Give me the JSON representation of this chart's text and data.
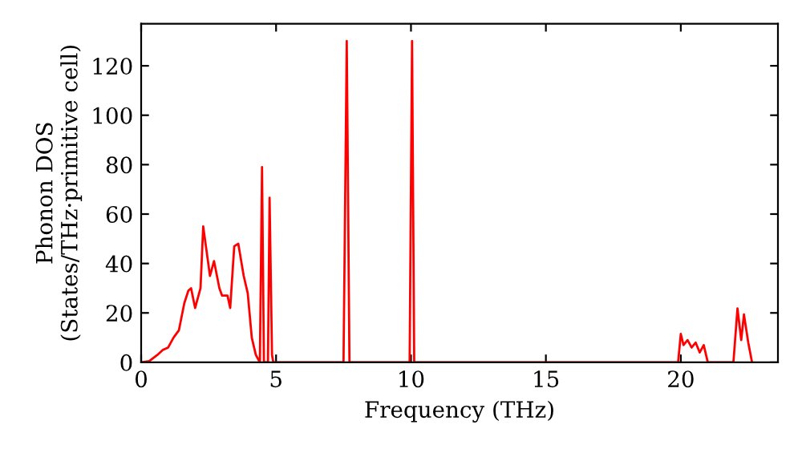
{
  "chart_data": {
    "type": "line",
    "xlabel": "Frequency (THz)",
    "ylabel": "Phonon DOS\n(States/THz·primitive cell)",
    "x": [
      0,
      0.3,
      0.6,
      0.8,
      1.0,
      1.2,
      1.4,
      1.6,
      1.75,
      1.85,
      2.0,
      2.2,
      2.3,
      2.4,
      2.55,
      2.7,
      2.9,
      3.0,
      3.2,
      3.3,
      3.45,
      3.6,
      3.8,
      3.95,
      4.1,
      4.25,
      4.4,
      4.48,
      4.55,
      4.7,
      4.76,
      4.85,
      4.9,
      7.5,
      7.62,
      7.72,
      9.95,
      10.04,
      10.12,
      19.9,
      20.0,
      20.1,
      20.25,
      20.4,
      20.55,
      20.7,
      20.85,
      21.0,
      21.95,
      22.1,
      22.24,
      22.34,
      22.5,
      22.64
    ],
    "series": [
      {
        "color": "#ff0000",
        "values": [
          0,
          0.5,
          3,
          5,
          6,
          10,
          13,
          24,
          29,
          30,
          22,
          30,
          55,
          47,
          35,
          41,
          30,
          27,
          27,
          22,
          47,
          48,
          35,
          28,
          10,
          3,
          0,
          79,
          0,
          0,
          66.6,
          3,
          0,
          0,
          130,
          0,
          0,
          130,
          0,
          0,
          11.5,
          7,
          9,
          6,
          8,
          4,
          7,
          0,
          0,
          21.8,
          9,
          19.4,
          8,
          0
        ]
      }
    ],
    "xlim": [
      0,
      23.6
    ],
    "ylim": [
      0,
      137
    ],
    "xticks": [
      0,
      5,
      10,
      15,
      20
    ],
    "yticks": [
      0,
      20,
      40,
      60,
      80,
      100,
      120
    ],
    "grid": false,
    "legend": false,
    "marker": "none",
    "line_style": "solid"
  }
}
